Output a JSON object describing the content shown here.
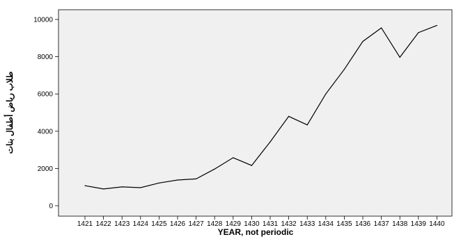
{
  "chart_data": {
    "type": "line",
    "title": "",
    "xlabel": "YEAR, not periodic",
    "ylabel": "طلاب رياض أطفال بنات",
    "x": [
      "1421",
      "1422",
      "1423",
      "1424",
      "1425",
      "1426",
      "1427",
      "1428",
      "1429",
      "1430",
      "1431",
      "1432",
      "1433",
      "1434",
      "1435",
      "1436",
      "1437",
      "1438",
      "1439",
      "1440"
    ],
    "series": [
      {
        "values": [
          1080,
          900,
          1010,
          970,
          1220,
          1380,
          1440,
          1970,
          2580,
          2160,
          3430,
          4800,
          4340,
          6000,
          7320,
          8820,
          9550,
          7970,
          9290,
          9680
        ]
      }
    ],
    "ylim": [
      0,
      10000
    ],
    "yticks": [
      0,
      2000,
      4000,
      6000,
      8000,
      10000
    ],
    "grid": false,
    "legend": "none",
    "colors": {
      "plot_bg": "#f0f0f0",
      "line": "#000000",
      "axis": "#000000"
    }
  }
}
